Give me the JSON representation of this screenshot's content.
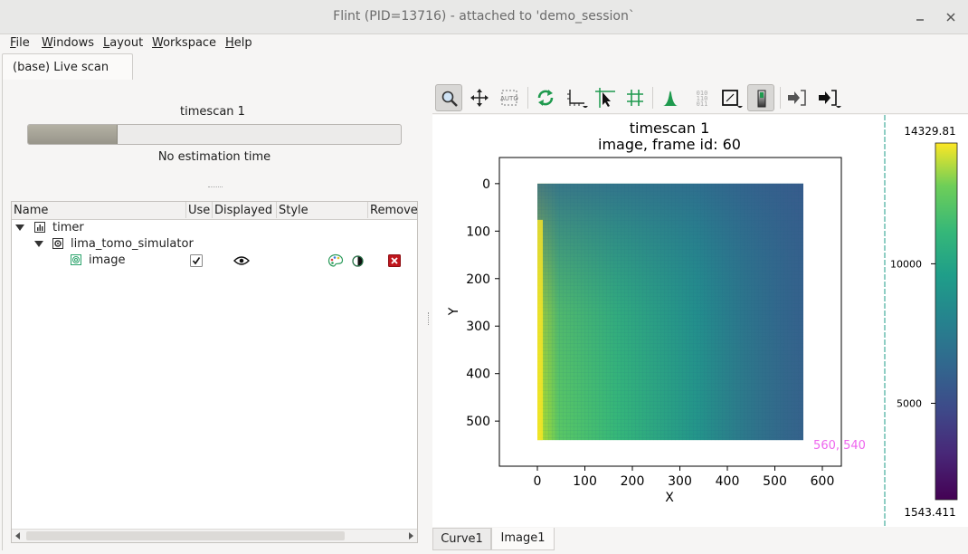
{
  "window": {
    "title": "Flint (PID=13716) - attached to 'demo_session`",
    "minimize_glyph": "⌄",
    "close_glyph": "✕"
  },
  "menu": [
    "File",
    "Windows",
    "Layout",
    "Workspace",
    "Help"
  ],
  "top_tab": "(base) Live scan",
  "scan": {
    "name": "timescan 1",
    "progress_percent": 24,
    "estimation": "No estimation time"
  },
  "tree": {
    "columns": [
      "Name",
      "Use",
      "Displayed",
      "Style",
      "Remove"
    ],
    "rows": [
      {
        "label": "timer",
        "icon": "chart-icon",
        "expanded": true
      },
      {
        "label": "lima_tomo_simulator",
        "icon": "device-icon",
        "expanded": true
      },
      {
        "label": "image",
        "icon": "image-icon",
        "use_checked": true,
        "displayed": "eye-icon",
        "style": [
          "palette-icon",
          "contrast-icon"
        ],
        "remove": "remove-icon"
      }
    ]
  },
  "toolbar": {
    "buttons": [
      "zoom-icon",
      "pan-icon",
      "autoscale-icon",
      "refresh-icon",
      "axes-icon",
      "cursor-icon",
      "grid-icon",
      "peak-icon",
      "binary-icon",
      "aspect-icon",
      "colorbar-icon",
      "import-icon",
      "export-icon"
    ],
    "active": [
      "zoom-icon",
      "colorbar-icon"
    ]
  },
  "plot": {
    "title_line1": "timescan 1",
    "title_line2": "image, frame id: 60",
    "xlabel": "X",
    "ylabel": "Y",
    "xticks": [
      "0",
      "100",
      "200",
      "300",
      "400",
      "500",
      "600"
    ],
    "yticks": [
      "0",
      "100",
      "200",
      "300",
      "400",
      "500"
    ],
    "xlim": [
      -80,
      640
    ],
    "ylim": [
      -55,
      595
    ],
    "image_extent": {
      "x": [
        0,
        560
      ],
      "y": [
        0,
        540
      ]
    },
    "size_label": "560, 540",
    "size_label_color": "#ee66ee"
  },
  "colorbar": {
    "max_label": "14329.81",
    "min_label": "1543.411",
    "ticks": [
      "10000",
      "5000"
    ],
    "tick_values": [
      10000,
      5000
    ],
    "min": 1543.411,
    "max": 14329.81,
    "colormap": "viridis"
  },
  "bottom_tabs": [
    {
      "label": "Curve1",
      "active": false
    },
    {
      "label": "Image1",
      "active": true
    }
  ]
}
